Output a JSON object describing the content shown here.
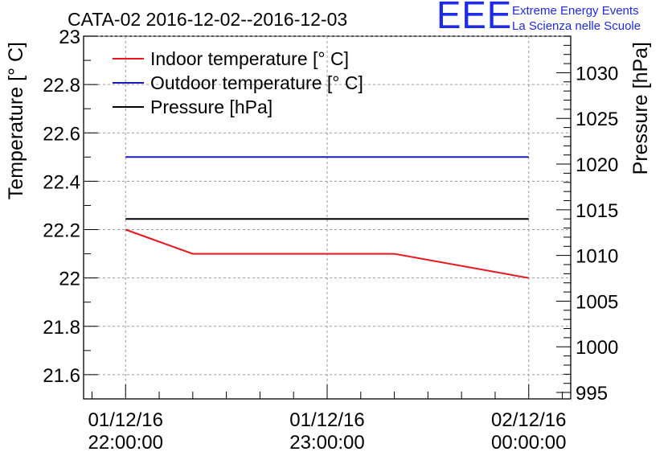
{
  "logo": {
    "mark": "EEE",
    "line1": "Extreme Energy Events",
    "line2": "La Scienza nelle Scuole"
  },
  "chart_data": {
    "type": "line",
    "title": "CATA-02 2016-12-02--2016-12-03",
    "ylabel_left": "Temperature [° C]",
    "ylabel_right": "Pressure [hPa]",
    "xlabel": "",
    "grid": true,
    "legend_position": "top-left",
    "x_ticks": [
      {
        "t": 0,
        "line1": "01/12/16",
        "line2": "22:00:00"
      },
      {
        "t": 60,
        "line1": "01/12/16",
        "line2": "23:00:00"
      },
      {
        "t": 120,
        "line1": "02/12/16",
        "line2": "00:00:00"
      }
    ],
    "x_range_minutes": [
      -12.5,
      132.5
    ],
    "ylim_left": [
      21.5,
      23
    ],
    "y_ticks_left": [
      "21.6",
      "21.8",
      "22",
      "22.2",
      "22.4",
      "22.6",
      "22.8",
      "23"
    ],
    "ylim_right": [
      994.3,
      1034
    ],
    "y_ticks_right": [
      "995",
      "1000",
      "1005",
      "1010",
      "1015",
      "1020",
      "1025",
      "1030"
    ],
    "series": [
      {
        "name": "Indoor temperature [° C]",
        "axis": "left",
        "color": "#e8171d",
        "points": [
          [
            0,
            22.2
          ],
          [
            20,
            22.1
          ],
          [
            80,
            22.1
          ],
          [
            120,
            22.0
          ]
        ]
      },
      {
        "name": "Outdoor temperature [° C]",
        "axis": "left",
        "color": "#1a1ab8",
        "points": [
          [
            0,
            22.5
          ],
          [
            120,
            22.5
          ]
        ]
      },
      {
        "name": "Pressure [hPa]",
        "axis": "right",
        "color": "#000000",
        "points": [
          [
            0,
            1014
          ],
          [
            120,
            1014
          ]
        ]
      }
    ]
  }
}
